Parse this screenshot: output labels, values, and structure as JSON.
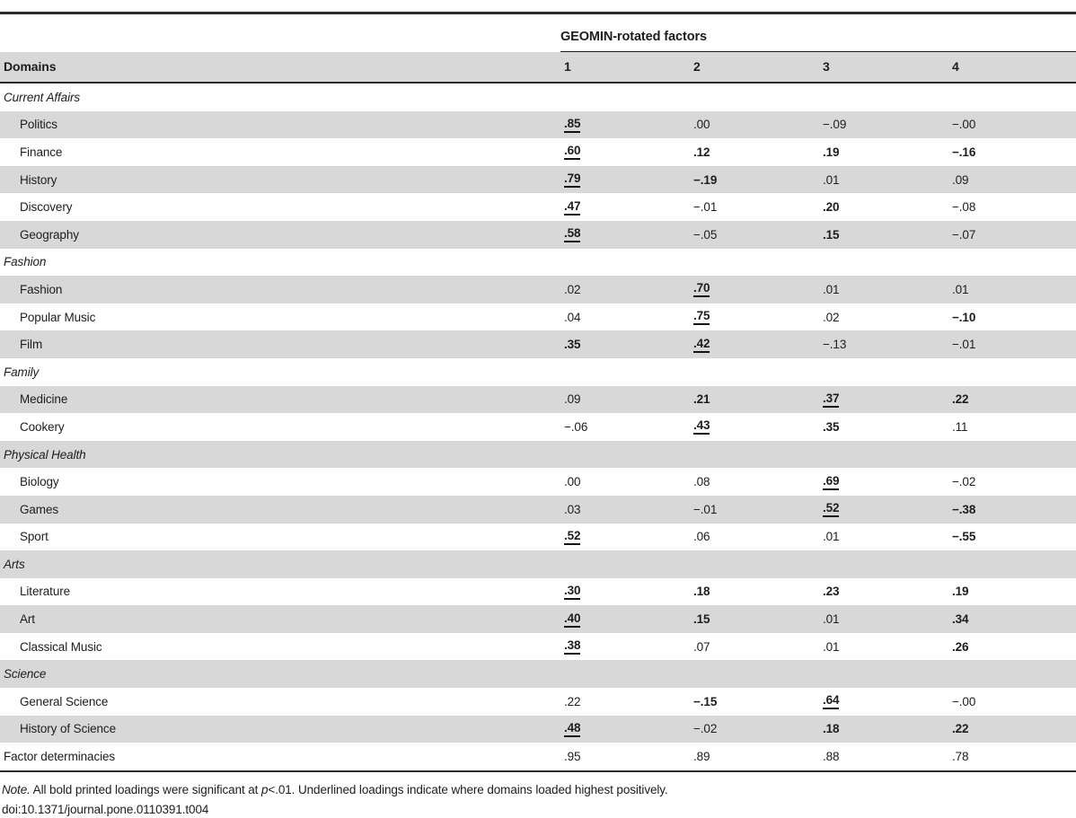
{
  "table": {
    "spanner": "GEOMIN-rotated factors",
    "domains_header": "Domains",
    "factor_headers": [
      "1",
      "2",
      "3",
      "4"
    ],
    "rows": [
      {
        "type": "section",
        "label": "Current Affairs"
      },
      {
        "type": "data",
        "label": "Politics",
        "values": [
          {
            "v": ".85",
            "b": true,
            "u": true
          },
          {
            "v": ".00"
          },
          {
            "v": "−.09"
          },
          {
            "v": "−.00"
          }
        ]
      },
      {
        "type": "data",
        "label": "Finance",
        "values": [
          {
            "v": ".60",
            "b": true,
            "u": true
          },
          {
            "v": ".12",
            "b": true
          },
          {
            "v": ".19",
            "b": true
          },
          {
            "v": "−.16",
            "b": true
          }
        ]
      },
      {
        "type": "data",
        "label": "History",
        "values": [
          {
            "v": ".79",
            "b": true,
            "u": true
          },
          {
            "v": "−.19",
            "b": true
          },
          {
            "v": ".01"
          },
          {
            "v": ".09"
          }
        ]
      },
      {
        "type": "data",
        "label": "Discovery",
        "values": [
          {
            "v": ".47",
            "b": true,
            "u": true
          },
          {
            "v": "−.01"
          },
          {
            "v": ".20",
            "b": true
          },
          {
            "v": "−.08"
          }
        ]
      },
      {
        "type": "data",
        "label": "Geography",
        "values": [
          {
            "v": ".58",
            "b": true,
            "u": true
          },
          {
            "v": "−.05"
          },
          {
            "v": ".15",
            "b": true
          },
          {
            "v": "−.07"
          }
        ]
      },
      {
        "type": "section",
        "label": "Fashion"
      },
      {
        "type": "data",
        "label": "Fashion",
        "values": [
          {
            "v": ".02"
          },
          {
            "v": ".70",
            "b": true,
            "u": true
          },
          {
            "v": ".01"
          },
          {
            "v": ".01"
          }
        ]
      },
      {
        "type": "data",
        "label": "Popular Music",
        "values": [
          {
            "v": ".04"
          },
          {
            "v": ".75",
            "b": true,
            "u": true
          },
          {
            "v": ".02"
          },
          {
            "v": "−.10",
            "b": true
          }
        ]
      },
      {
        "type": "data",
        "label": "Film",
        "values": [
          {
            "v": ".35",
            "b": true
          },
          {
            "v": ".42",
            "b": true,
            "u": true
          },
          {
            "v": "−.13"
          },
          {
            "v": "−.01"
          }
        ]
      },
      {
        "type": "section",
        "label": "Family"
      },
      {
        "type": "data",
        "label": "Medicine",
        "values": [
          {
            "v": ".09"
          },
          {
            "v": ".21",
            "b": true
          },
          {
            "v": ".37",
            "b": true,
            "u": true
          },
          {
            "v": ".22",
            "b": true
          }
        ]
      },
      {
        "type": "data",
        "label": "Cookery",
        "values": [
          {
            "v": "−.06"
          },
          {
            "v": ".43",
            "b": true,
            "u": true
          },
          {
            "v": ".35",
            "b": true
          },
          {
            "v": ".11"
          }
        ]
      },
      {
        "type": "section",
        "label": "Physical Health"
      },
      {
        "type": "data",
        "label": "Biology",
        "values": [
          {
            "v": ".00"
          },
          {
            "v": ".08"
          },
          {
            "v": ".69",
            "b": true,
            "u": true
          },
          {
            "v": "−.02"
          }
        ]
      },
      {
        "type": "data",
        "label": "Games",
        "values": [
          {
            "v": ".03"
          },
          {
            "v": "−.01"
          },
          {
            "v": ".52",
            "b": true,
            "u": true
          },
          {
            "v": "−.38",
            "b": true
          }
        ]
      },
      {
        "type": "data",
        "label": "Sport",
        "values": [
          {
            "v": ".52",
            "b": true,
            "u": true
          },
          {
            "v": ".06"
          },
          {
            "v": ".01"
          },
          {
            "v": "−.55",
            "b": true
          }
        ]
      },
      {
        "type": "section",
        "label": "Arts"
      },
      {
        "type": "data",
        "label": "Literature",
        "values": [
          {
            "v": ".30",
            "b": true,
            "u": true
          },
          {
            "v": ".18",
            "b": true
          },
          {
            "v": ".23",
            "b": true
          },
          {
            "v": ".19",
            "b": true
          }
        ]
      },
      {
        "type": "data",
        "label": "Art",
        "values": [
          {
            "v": ".40",
            "b": true,
            "u": true
          },
          {
            "v": ".15",
            "b": true
          },
          {
            "v": ".01"
          },
          {
            "v": ".34",
            "b": true
          }
        ]
      },
      {
        "type": "data",
        "label": "Classical Music",
        "values": [
          {
            "v": ".38",
            "b": true,
            "u": true
          },
          {
            "v": ".07"
          },
          {
            "v": ".01"
          },
          {
            "v": ".26",
            "b": true
          }
        ]
      },
      {
        "type": "section",
        "label": "Science"
      },
      {
        "type": "data",
        "label": "General Science",
        "values": [
          {
            "v": ".22"
          },
          {
            "v": "−.15",
            "b": true
          },
          {
            "v": ".64",
            "b": true,
            "u": true
          },
          {
            "v": "−.00"
          }
        ]
      },
      {
        "type": "data",
        "label": "History of Science",
        "values": [
          {
            "v": ".48",
            "b": true,
            "u": true
          },
          {
            "v": "−.02"
          },
          {
            "v": ".18",
            "b": true
          },
          {
            "v": ".22",
            "b": true
          }
        ]
      },
      {
        "type": "footer",
        "label": "Factor determinacies",
        "values": [
          {
            "v": ".95"
          },
          {
            "v": ".89"
          },
          {
            "v": ".88"
          },
          {
            "v": ".78"
          }
        ]
      }
    ]
  },
  "note": {
    "label": "Note.",
    "text_a": " All bold printed loadings were significant at ",
    "p_italic": "p",
    "text_b": "<.01. Underlined loadings indicate where domains loaded highest positively.",
    "doi": "doi:10.1371/journal.pone.0110391.t004"
  }
}
